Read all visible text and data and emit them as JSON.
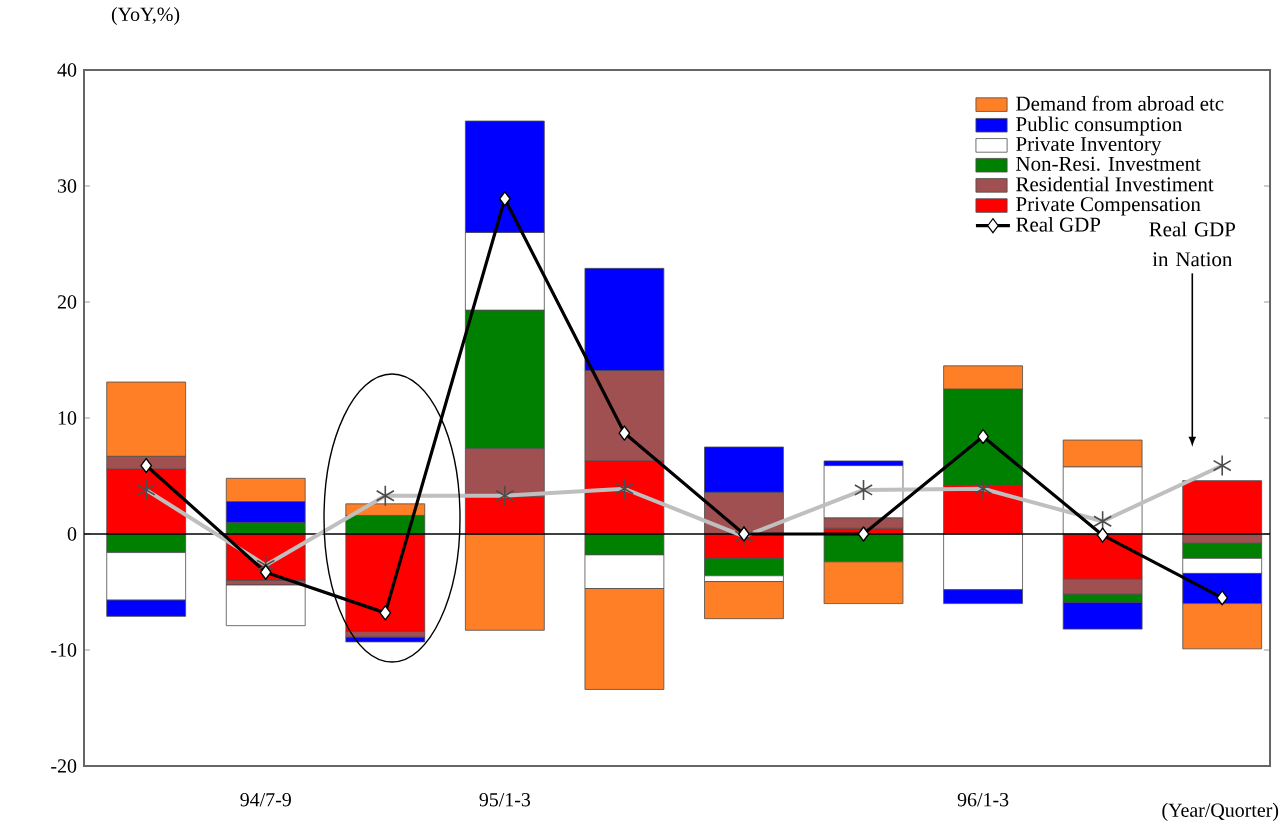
{
  "chart_data": {
    "type": "bar",
    "stacked": true,
    "xlabel": "(Year/Quorter)",
    "ylabel": "(YoY,%)",
    "categories": [
      null,
      "94/7-9",
      null,
      "95/1-3",
      null,
      null,
      null,
      "96/1-3",
      null,
      null
    ],
    "ylim": [
      -20,
      40
    ],
    "yticks": [
      -20,
      -10,
      0,
      10,
      20,
      30,
      40
    ],
    "legend": "top right",
    "ref_lines": [
      {
        "axis": "y",
        "value": 0,
        "color": "#000000"
      }
    ],
    "annotations": [
      "Real GDP in Nation"
    ],
    "series": [
      {
        "name": "Private Compensation",
        "color": "#ff0000",
        "values": [
          5.6,
          -4.0,
          -8.4,
          3.2,
          6.3,
          -2.1,
          0.5,
          4.2,
          -3.9,
          4.6
        ]
      },
      {
        "name": "Residential Investiment",
        "color": "#a05050",
        "values": [
          1.1,
          -0.4,
          -0.5,
          4.2,
          7.8,
          3.6,
          0.9,
          null,
          -1.3,
          -0.8
        ]
      },
      {
        "name": "Non-Resi. Investment",
        "color": "#008000",
        "values": [
          -1.6,
          1.0,
          1.6,
          11.9,
          -1.8,
          -1.5,
          -2.4,
          8.3,
          -0.7,
          -1.3
        ]
      },
      {
        "name": "Private Inventory",
        "color": "#ffffff",
        "values": [
          -4.1,
          -3.5,
          null,
          6.7,
          -2.9,
          -0.5,
          4.5,
          -4.8,
          5.8,
          -1.3
        ]
      },
      {
        "name": "Public consumption",
        "color": "#0000ff",
        "values": [
          -1.4,
          1.8,
          -0.4,
          9.6,
          8.8,
          3.9,
          0.4,
          -1.2,
          -2.3,
          -2.6
        ]
      },
      {
        "name": "Demand from abroad etc",
        "color": "#ff7f27",
        "values": [
          6.4,
          2.0,
          1.0,
          -8.3,
          -8.7,
          -3.2,
          -3.6,
          2.0,
          2.3,
          -3.9
        ]
      },
      {
        "type": "line",
        "color": "#bfbfbf",
        "marker": "cross",
        "values": [
          3.8,
          -2.7,
          3.3,
          3.3,
          3.9,
          -0.2,
          3.8,
          3.9,
          1.1,
          5.9
        ]
      },
      {
        "name": "Real GDP",
        "type": "line",
        "color": "#000000",
        "marker": "diamond",
        "values": [
          5.9,
          -3.3,
          -6.8,
          28.9,
          8.7,
          0.0,
          0.0,
          8.4,
          -0.1,
          -5.5
        ]
      }
    ]
  }
}
